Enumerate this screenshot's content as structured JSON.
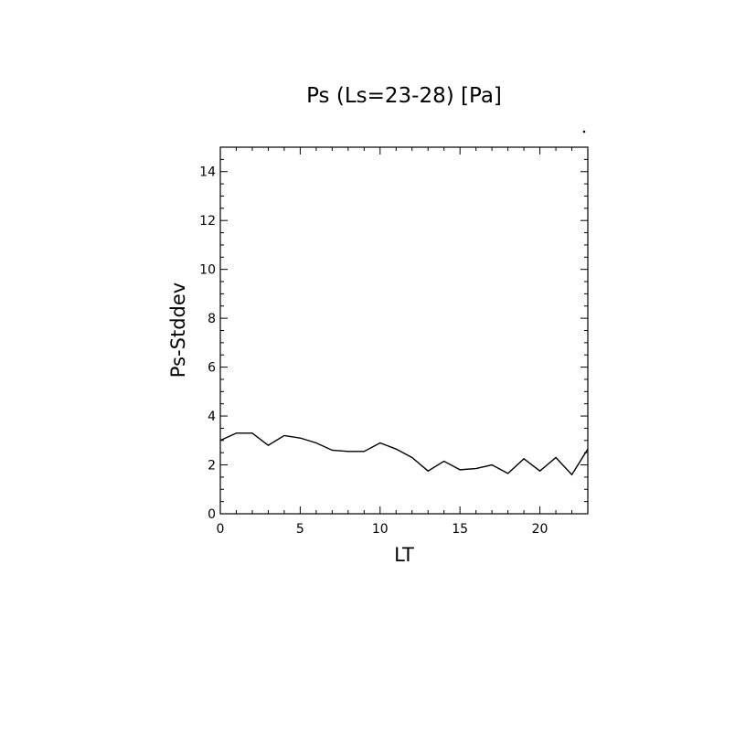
{
  "chart_data": {
    "type": "line",
    "title": "Ps (Ls=23-28) [Pa]",
    "xlabel": "LT",
    "ylabel": "Ps-Stddev",
    "xlim": [
      0,
      23
    ],
    "ylim": [
      0,
      15
    ],
    "x_ticks": [
      0,
      5,
      10,
      15,
      20
    ],
    "y_ticks": [
      0,
      2,
      4,
      6,
      8,
      10,
      12,
      14
    ],
    "grid": false,
    "series": [
      {
        "x": [
          0,
          1,
          2,
          3,
          4,
          5,
          6,
          7,
          8,
          9,
          10,
          11,
          12,
          13,
          14,
          15,
          16,
          17,
          18,
          19,
          20,
          21,
          22,
          23
        ],
        "values": [
          3.0,
          3.3,
          3.3,
          2.8,
          3.2,
          3.1,
          2.9,
          2.6,
          2.55,
          2.55,
          2.9,
          2.65,
          2.3,
          1.75,
          2.15,
          1.8,
          1.85,
          2.0,
          1.65,
          2.25,
          1.75,
          2.3,
          1.6,
          2.65
        ]
      }
    ],
    "line_color": "#000000"
  }
}
